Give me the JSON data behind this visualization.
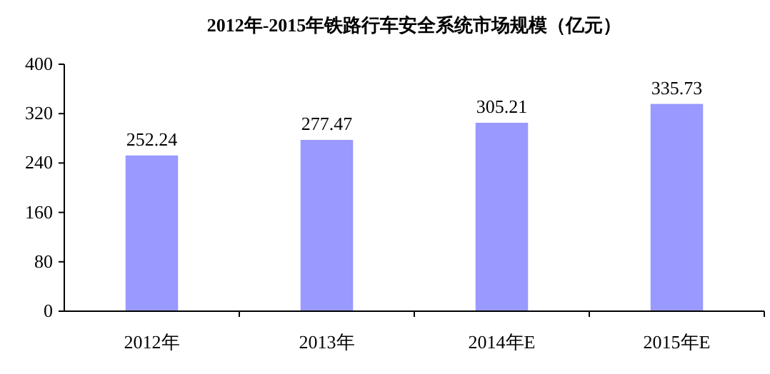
{
  "chart_data": {
    "type": "bar",
    "title": "2012年-2015年铁路行车安全系统市场规模（亿元）",
    "categories": [
      "2012年",
      "2013年",
      "2014年E",
      "2015年E"
    ],
    "values": [
      252.24,
      277.47,
      305.21,
      335.73
    ],
    "color": "#9999ff",
    "ylim": [
      0,
      400
    ],
    "yticks": [
      0,
      80,
      160,
      240,
      320,
      400
    ],
    "data_labels": true,
    "grid": false
  }
}
